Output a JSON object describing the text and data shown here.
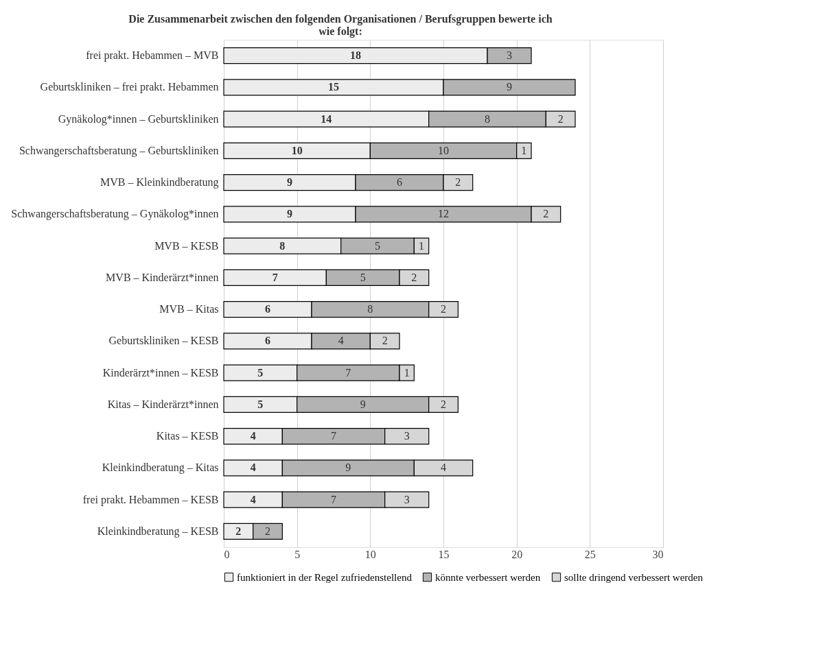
{
  "chart_data": {
    "type": "bar",
    "orientation": "horizontal",
    "stacked": true,
    "title": "Die Zusammenarbeit zwischen den folgenden Organisationen / Berufsgruppen bewerte ich wie folgt:",
    "categories": [
      "frei prakt. Hebammen – MVB",
      "Geburtskliniken – frei prakt. Hebammen",
      "Gynäkolog*innen – Geburtskliniken",
      "Schwangerschaftsberatung – Geburtskliniken",
      "MVB – Kleinkindberatung",
      "Schwangerschaftsberatung – Gynäkolog*innen",
      "MVB – KESB",
      "MVB – Kinderärzt*innen",
      "MVB – Kitas",
      "Geburtskliniken – KESB",
      "Kinderärzt*innen – KESB",
      "Kitas – Kinderärzt*innen",
      "Kitas – KESB",
      "Kleinkindberatung – Kitas",
      "frei prakt. Hebammen – KESB",
      "Kleinkindberatung – KESB"
    ],
    "series": [
      {
        "name": "funktioniert in der Regel zufriedenstellend",
        "color": "#ececec",
        "values": [
          18,
          15,
          14,
          10,
          9,
          9,
          8,
          7,
          6,
          6,
          5,
          5,
          4,
          4,
          4,
          2
        ]
      },
      {
        "name": "könnte verbessert werden",
        "color": "#b3b3b3",
        "values": [
          3,
          9,
          8,
          10,
          6,
          12,
          5,
          5,
          8,
          4,
          7,
          9,
          7,
          9,
          7,
          2
        ]
      },
      {
        "name": "sollte dringend verbessert werden",
        "color": "#d6d6d6",
        "values": [
          null,
          null,
          2,
          1,
          2,
          2,
          1,
          2,
          2,
          2,
          1,
          2,
          3,
          4,
          3,
          null
        ]
      }
    ],
    "xlim": [
      0,
      30
    ],
    "xticks": [
      0,
      5,
      10,
      15,
      20,
      25,
      30
    ],
    "data_labels": true,
    "grid": "x",
    "legend": "bottom"
  }
}
